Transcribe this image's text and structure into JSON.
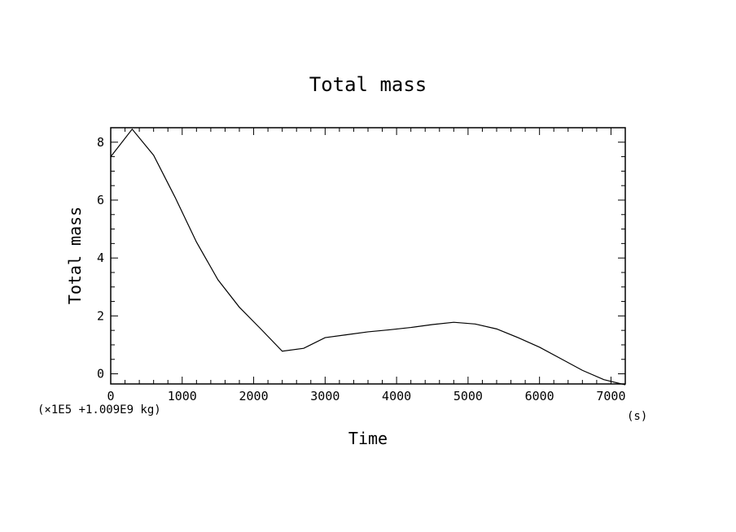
{
  "chart_data": {
    "type": "line",
    "title": "Total mass",
    "xlabel": "Time",
    "ylabel": "Total mass",
    "x_unit": "(s)",
    "y_unit": "(×1E5 +1.009E9 kg)",
    "xlim": [
      0,
      7200
    ],
    "ylim": [
      -0.35,
      8.5
    ],
    "x_ticks": [
      0,
      1000,
      2000,
      3000,
      4000,
      5000,
      6000,
      7000
    ],
    "y_ticks": [
      0,
      2,
      4,
      6,
      8
    ],
    "grid": false,
    "series": [
      {
        "x": [
          0,
          300,
          600,
          900,
          1200,
          1500,
          1800,
          2100,
          2400,
          2700,
          3000,
          3300,
          3600,
          3900,
          4200,
          4500,
          4800,
          5100,
          5400,
          5700,
          6000,
          6300,
          6600,
          6900,
          7200
        ],
        "y": [
          7.5,
          8.45,
          7.55,
          6.1,
          4.55,
          3.25,
          2.3,
          1.55,
          0.78,
          0.88,
          1.25,
          1.35,
          1.45,
          1.52,
          1.6,
          1.7,
          1.78,
          1.72,
          1.55,
          1.25,
          0.92,
          0.52,
          0.12,
          -0.2,
          -0.38
        ]
      }
    ]
  }
}
